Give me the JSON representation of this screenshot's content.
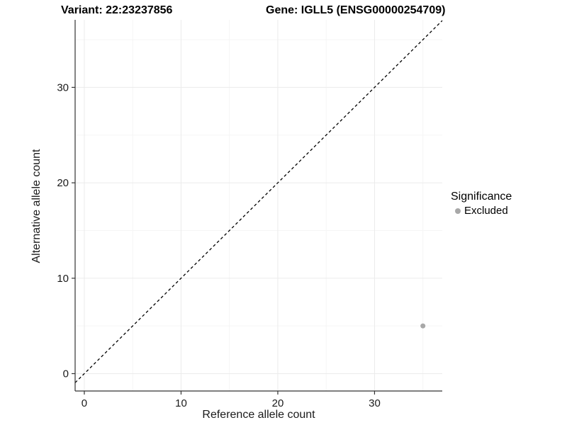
{
  "chart_data": {
    "type": "scatter",
    "title_left": "Variant: 22:23237856",
    "title_right": "Gene: IGLL5 (ENSG00000254709)",
    "xlabel": "Reference allele count",
    "ylabel": "Alternative allele count",
    "xlim": [
      -0.95,
      37.0
    ],
    "ylim": [
      -1.82,
      37.08
    ],
    "x_ticks": [
      0,
      10,
      20,
      30
    ],
    "y_ticks": [
      0,
      10,
      20,
      30
    ],
    "x_minor_gridlines": [
      5,
      15,
      25,
      35
    ],
    "y_minor_gridlines": [
      5,
      15,
      25,
      35
    ],
    "grid": true,
    "reference_line": {
      "type": "identity",
      "slope": 1,
      "intercept": 0,
      "style": "dashed",
      "color": "#000000"
    },
    "series": [
      {
        "name": "Excluded",
        "color": "#a8a8a8",
        "points": [
          {
            "x": 35,
            "y": 5
          }
        ]
      }
    ],
    "legend": {
      "title": "Significance",
      "position": "right",
      "entries": [
        {
          "label": "Excluded",
          "color": "#a8a8a8"
        }
      ]
    },
    "colors": {
      "background": "#ffffff",
      "grid_major": "#ebebeb",
      "grid_minor": "#f5f5f5",
      "axis": "#333333",
      "tick_text": "#1a1a1a",
      "title_text": "#000000",
      "point": "#a8a8a8"
    }
  }
}
